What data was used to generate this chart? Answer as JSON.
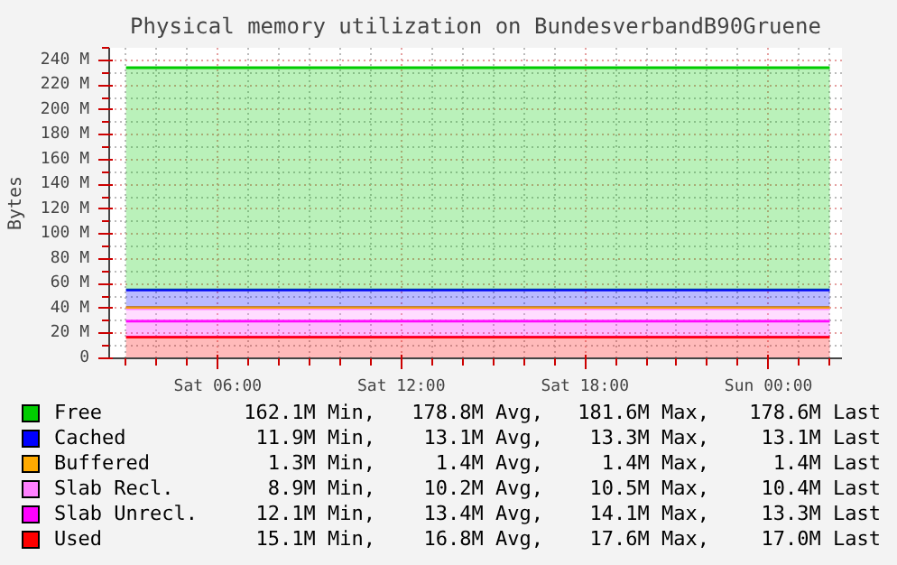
{
  "chart_data": {
    "type": "area",
    "stacked": true,
    "title": "Physical memory utilization on BundesverbandB90Gruene",
    "ylabel": "Bytes",
    "categories": [
      null,
      null,
      null,
      "Sat 06:00",
      null,
      null,
      null,
      null,
      null,
      "Sat 12:00",
      null,
      null,
      null,
      null,
      null,
      "Sat 18:00",
      null,
      null,
      null,
      null,
      null,
      "Sun 00:00",
      null,
      null
    ],
    "ylim": [
      0,
      250
    ],
    "yticks": [
      0,
      {
        "value": 20,
        "label": "20 M"
      },
      {
        "value": 40,
        "label": "40 M"
      },
      {
        "value": 60,
        "label": "60 M"
      },
      {
        "value": 80,
        "label": "80 M"
      },
      {
        "value": 100,
        "label": "100 M"
      },
      {
        "value": 120,
        "label": "120 M"
      },
      {
        "value": 140,
        "label": "140 M"
      },
      {
        "value": 160,
        "label": "160 M"
      },
      {
        "value": 180,
        "label": "180 M"
      },
      {
        "value": 200,
        "label": "200 M"
      },
      {
        "value": 220,
        "label": "220 M"
      },
      {
        "value": 240,
        "label": "240 M"
      }
    ],
    "grid": true,
    "legend": "bottom",
    "series": [
      {
        "name": "Used",
        "color": "#ff0000",
        "values": [
          17,
          17,
          17,
          17,
          17,
          17,
          17,
          17,
          17,
          17,
          17,
          17,
          17,
          17,
          17,
          17,
          17,
          17,
          17,
          17,
          17,
          17,
          17,
          17
        ]
      },
      {
        "name": "Slab Unrecl.",
        "color": "#ff00ff",
        "values": [
          13,
          13,
          13,
          13,
          13,
          13,
          13,
          13,
          13,
          13,
          13,
          13,
          13,
          13,
          13,
          13,
          13,
          13,
          13,
          13,
          13,
          13,
          13,
          13
        ]
      },
      {
        "name": "Slab Recl.",
        "color": "#ff80ff",
        "values": [
          10,
          10,
          10,
          10,
          10,
          10,
          10,
          10,
          10,
          10,
          10,
          10,
          10,
          10,
          10,
          10,
          10,
          10,
          10,
          10,
          10,
          10,
          10,
          10
        ]
      },
      {
        "name": "Buffered",
        "color": "#ffaa00",
        "values": [
          1,
          1,
          1,
          1,
          1,
          1,
          1,
          1,
          1,
          1,
          1,
          1,
          1,
          1,
          1,
          1,
          1,
          1,
          1,
          1,
          1,
          1,
          1,
          1
        ]
      },
      {
        "name": "Cached",
        "color": "#0000ff",
        "values": [
          14,
          14,
          14,
          14,
          14,
          14,
          14,
          14,
          14,
          14,
          14,
          14,
          14,
          14,
          14,
          14,
          14,
          14,
          14,
          14,
          14,
          14,
          14,
          14
        ]
      },
      {
        "name": "Free",
        "color": "#00cc00",
        "values": [
          179,
          179,
          179,
          179,
          179,
          179,
          179,
          179,
          179,
          179,
          179,
          179,
          179,
          179,
          179,
          179,
          179,
          179,
          179,
          179,
          179,
          179,
          179,
          179
        ]
      }
    ],
    "annotations": [
      "162.1M Min, 178.8M Avg, 181.6M Max, 178.6M Last",
      "11.9M Min, 13.1M Avg, 13.3M Max, 13.1M Last",
      "1.3M Min, 1.4M Avg, 1.4M Max, 1.4M Last",
      "8.9M Min, 10.2M Avg, 10.5M Max, 10.4M Last",
      "12.1M Min, 13.4M Avg, 14.1M Max, 13.3M Last",
      "15.1M Min, 16.8M Avg, 17.6M Max, 17.0M Last"
    ]
  }
}
